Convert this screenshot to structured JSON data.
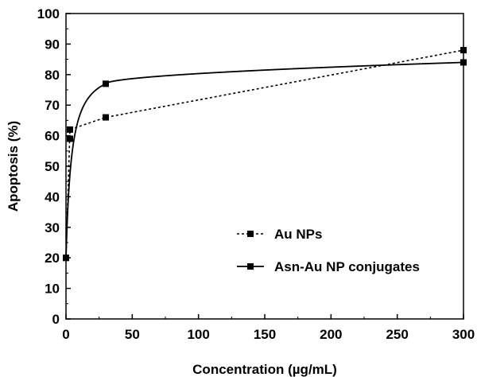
{
  "chart_data": {
    "type": "line",
    "title": "",
    "xlabel": "Concentration (µg/mL)",
    "ylabel": "Apoptosis (%)",
    "xlim": [
      0,
      300
    ],
    "ylim": [
      0,
      100
    ],
    "xticks": [
      0,
      50,
      100,
      150,
      200,
      250,
      300
    ],
    "yticks": [
      0,
      10,
      20,
      30,
      40,
      50,
      60,
      70,
      80,
      90,
      100
    ],
    "grid": false,
    "legend_position": "center-right",
    "series": [
      {
        "name": "Au NPs",
        "style": "dotted",
        "color": "#000000",
        "x": [
          0,
          3,
          30,
          300
        ],
        "y": [
          20,
          62,
          66,
          88
        ]
      },
      {
        "name": "Asn-Au NP conjugates",
        "style": "solid",
        "color": "#000000",
        "x": [
          0,
          3,
          30,
          300
        ],
        "y": [
          20,
          59,
          77,
          84
        ]
      }
    ]
  }
}
